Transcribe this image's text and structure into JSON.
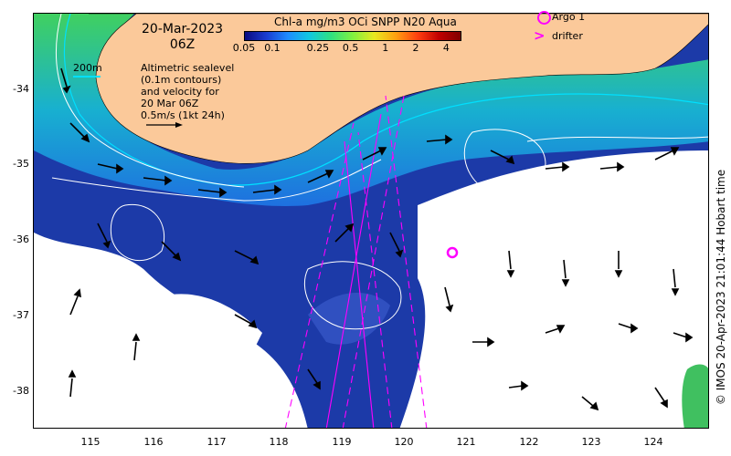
{
  "header": {
    "date": "20-Mar-2023",
    "hour": "06Z",
    "colorbar_title": "Chl-a mg/m3 OCi SNPP N20 Aqua",
    "colorbar_ticks": [
      "0.05",
      "0.1",
      "0.25",
      "0.5",
      "1",
      "2",
      "4"
    ]
  },
  "legend": {
    "contour_label": "200m",
    "altimetry_lines": [
      "Altimetric sealevel",
      "(0.1m contours)",
      "and velocity for",
      "20 Mar 06Z",
      "0.5m/s (1kt 24h)"
    ],
    "argo_label": "Argo 1",
    "drifter_label": "drifter"
  },
  "axes": {
    "lat_ticks": [
      "-34",
      "-35",
      "-36",
      "-37",
      "-38"
    ],
    "lon_ticks": [
      "115",
      "116",
      "117",
      "118",
      "119",
      "120",
      "121",
      "122",
      "123",
      "124"
    ]
  },
  "credit": "© IMOS 20-Apr-2023 21:01:44 Hobart time",
  "colors": {
    "land": "#fbc99a",
    "deep_ocean": "#1c3aa8",
    "contour": "#ffffff",
    "isobath": "#00e0ff",
    "track": "#ff00ff",
    "argo": "#ff00ff"
  },
  "icons": [
    "argo-ring-icon",
    "drifter-arrow-icon",
    "velocity-arrow-icon"
  ]
}
